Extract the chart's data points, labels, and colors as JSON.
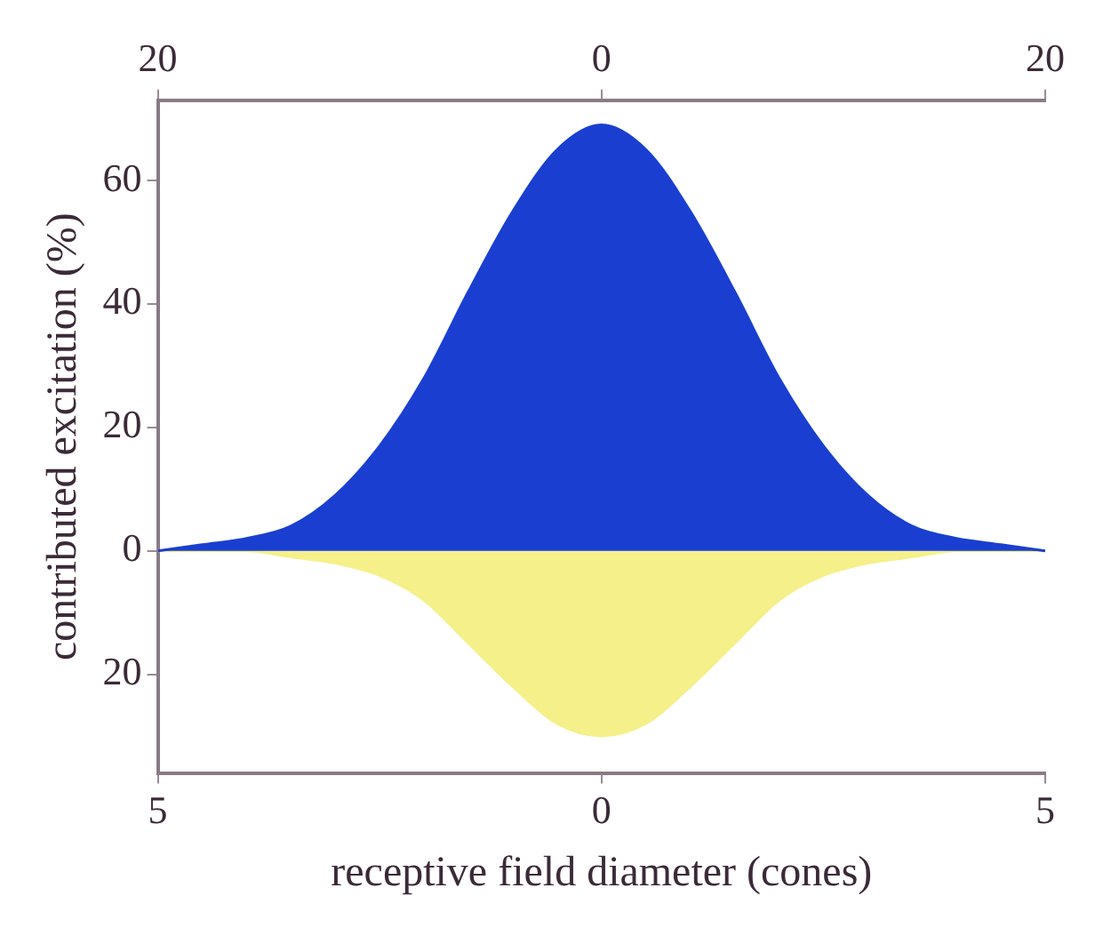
{
  "chart_data": {
    "type": "area",
    "xlabel": "receptive field diameter (cones)",
    "ylabel": "contributed excitation (%)",
    "x": [
      -5,
      -4.5,
      -4,
      -3.5,
      -3,
      -2.5,
      -2,
      -1.5,
      -1,
      -0.5,
      0,
      0.5,
      1,
      1.5,
      2,
      2.5,
      3,
      3.5,
      4,
      4.5,
      5
    ],
    "series": [
      {
        "color": "#1a3fd0",
        "values": [
          0,
          1,
          2,
          4,
          9,
          17,
          28,
          42,
          55,
          65,
          69,
          65,
          55,
          42,
          28,
          17,
          9,
          4,
          2,
          1,
          0
        ]
      },
      {
        "color": "#f5f08a",
        "values": [
          0,
          0,
          0,
          -1,
          -2,
          -4,
          -8,
          -15,
          -22,
          -28,
          -30,
          -28,
          -22,
          -15,
          -8,
          -4,
          -2,
          -1,
          0,
          0,
          0
        ]
      }
    ],
    "xlim": [
      -5,
      5
    ],
    "xticks": [
      {
        "value": -5,
        "label": "5"
      },
      0,
      5
    ],
    "x2lim": [
      -20,
      20
    ],
    "x2ticks": [
      {
        "value": -20,
        "label": "20"
      },
      0,
      20
    ],
    "ylim": [
      -36,
      73
    ],
    "yticks": [
      {
        "value": -20,
        "label": "20"
      },
      0,
      20,
      40,
      60
    ],
    "marker": "none",
    "legend": false
  }
}
